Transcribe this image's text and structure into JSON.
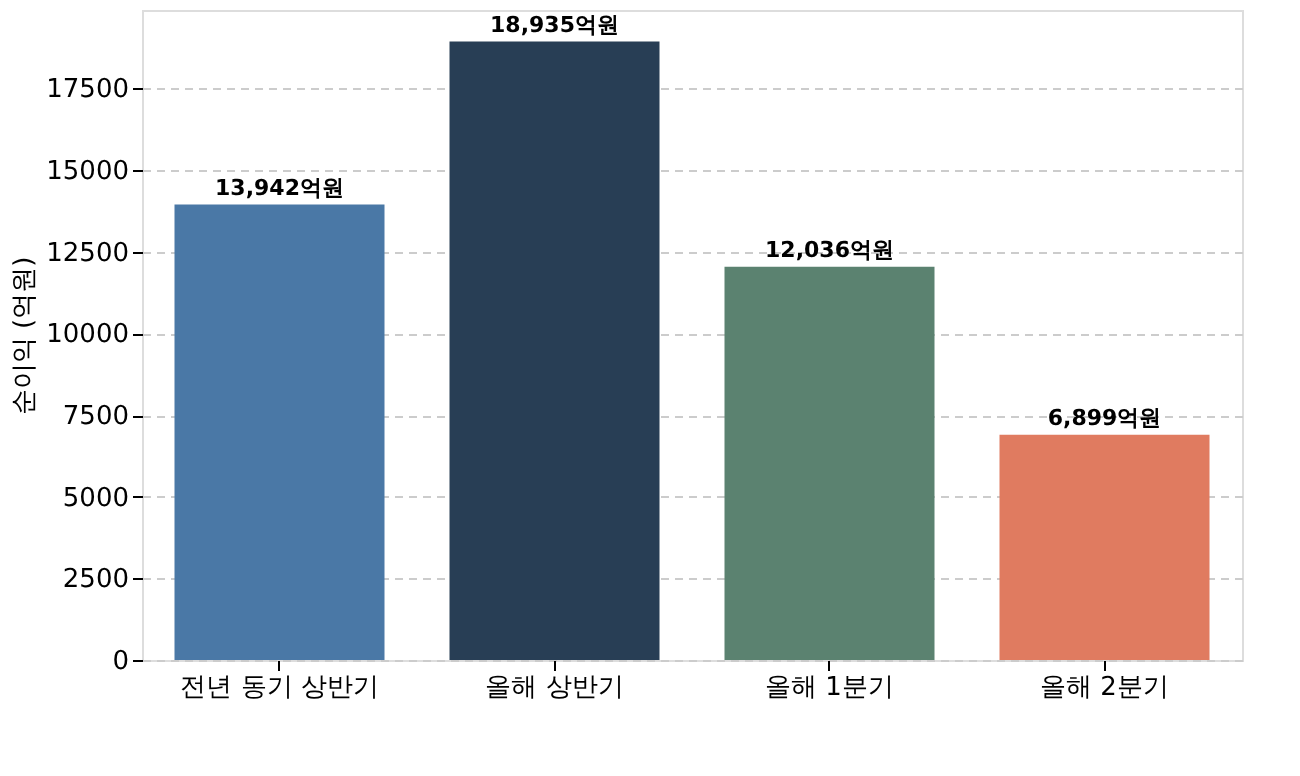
{
  "chart_data": {
    "type": "bar",
    "ylabel": "순이익 (억원)",
    "categories": [
      "전년 동기 상반기",
      "올해 상반기",
      "올해 1분기",
      "올해 2분기"
    ],
    "values": [
      13942,
      18935,
      12036,
      6899
    ],
    "colors": [
      "#4a78a6",
      "#283e55",
      "#5b8270",
      "#e07b60"
    ],
    "value_labels": [
      "13,942억원",
      "18,935억원",
      "12,036억원",
      "6,899억원"
    ],
    "ylim": [
      0,
      19900
    ],
    "yticks": [
      0,
      2500,
      5000,
      7500,
      10000,
      12500,
      15000,
      17500
    ],
    "grid": "y",
    "line_style": "dashed"
  }
}
